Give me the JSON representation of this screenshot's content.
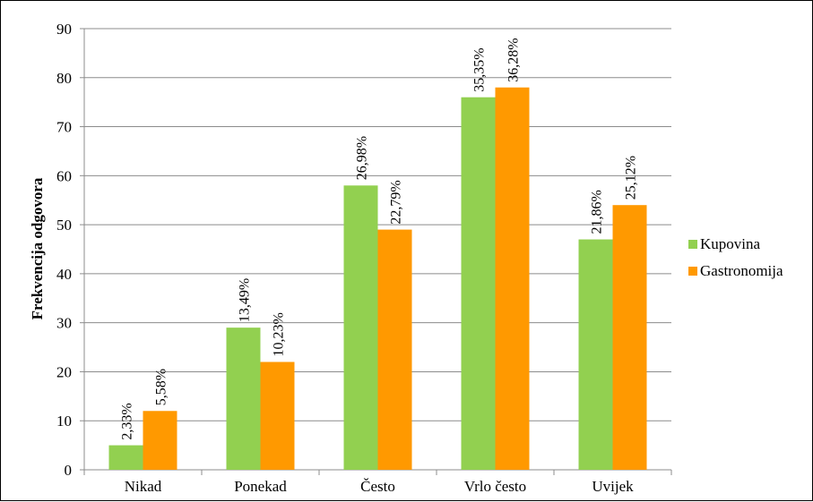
{
  "chart_data": {
    "type": "bar",
    "title": "",
    "xlabel": "",
    "ylabel": "Frekvencija odgovora",
    "ylim": [
      0,
      90
    ],
    "yticks": [
      0,
      10,
      20,
      30,
      40,
      50,
      60,
      70,
      80,
      90
    ],
    "grid": true,
    "legend_position": "right",
    "categories": [
      "Nikad",
      "Ponekad",
      "Često",
      "Vrlo često",
      "Uvijek"
    ],
    "series": [
      {
        "name": "Kupovina",
        "color": "#92D050",
        "values": [
          5,
          29,
          58,
          76,
          47
        ],
        "labels": [
          "2,33%",
          "13,49%",
          "26,98%",
          "35,35%",
          "21,86%"
        ]
      },
      {
        "name": "Gastronomija",
        "color": "#FF9900",
        "values": [
          12,
          22,
          49,
          78,
          54
        ],
        "labels": [
          "5,58%",
          "10,23%",
          "22,79%",
          "36,28%",
          "25,12%"
        ]
      }
    ]
  }
}
